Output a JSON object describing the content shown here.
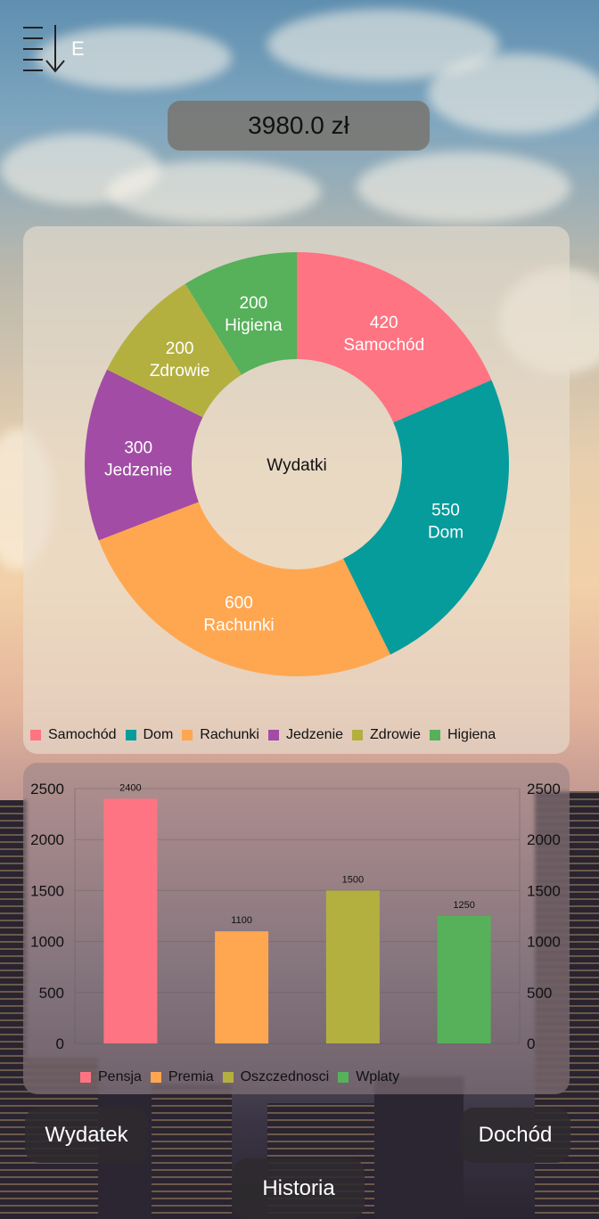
{
  "header": {
    "menu_icon_letter": "E",
    "balance": "3980.0 zł"
  },
  "expenses_chart": {
    "center_label": "Wydatki",
    "legend": [
      "Samochód",
      "Dom",
      "Rachunki",
      "Jedzenie",
      "Zdrowie",
      "Higiena"
    ]
  },
  "income_chart": {
    "legend": [
      "Pensja",
      "Premia",
      "Oszczednosci",
      "Wplaty"
    ]
  },
  "buttons": {
    "expense": "Wydatek",
    "income": "Dochód",
    "history": "Historia"
  },
  "colors": {
    "pink": "#FF7482",
    "teal": "#069C9C",
    "orange": "#FFA750",
    "purple": "#A24CA6",
    "olive": "#B4B040",
    "green": "#57B05A"
  },
  "chart_data": [
    {
      "type": "pie",
      "title": "Wydatki",
      "categories": [
        "Samochód",
        "Dom",
        "Rachunki",
        "Jedzenie",
        "Zdrowie",
        "Higiena"
      ],
      "values": [
        420,
        550,
        600,
        300,
        200,
        200
      ],
      "colors": [
        "#FF7482",
        "#069C9C",
        "#FFA750",
        "#A24CA6",
        "#B4B040",
        "#57B05A"
      ],
      "legend": "bottom"
    },
    {
      "type": "bar",
      "categories": [
        "Pensja",
        "Premia",
        "Oszczednosci",
        "Wplaty"
      ],
      "values": [
        2400,
        1100,
        1500,
        1250
      ],
      "colors": [
        "#FF7482",
        "#FFA750",
        "#B4B040",
        "#57B05A"
      ],
      "ylim": [
        0,
        2500
      ],
      "yticks": [
        0,
        500,
        1000,
        1500,
        2000,
        2500
      ],
      "grid": true,
      "legend": "bottom"
    }
  ]
}
